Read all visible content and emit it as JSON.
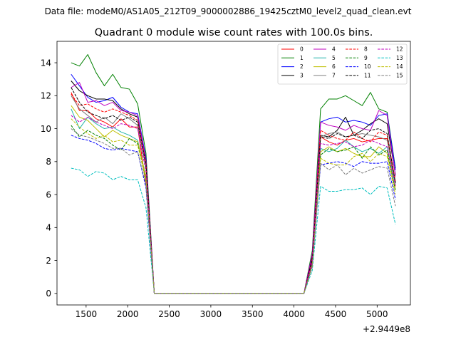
{
  "suptitle": "Data file: modeM0/AS1A05_212T09_9000002886_19425cztM0_level2_quad_clean.evt",
  "chart_data": {
    "type": "line",
    "title": "Quadrant 0 module wise count rates with 100.0s bins.",
    "xlabel": "",
    "ylabel": "",
    "offset_label": "+2.9449e8",
    "xlim": [
      1150,
      5400
    ],
    "ylim": [
      -0.7,
      15.3
    ],
    "xticks": [
      1500,
      2000,
      2500,
      3000,
      3500,
      4000,
      4500,
      5000
    ],
    "yticks": [
      0,
      2,
      4,
      6,
      8,
      10,
      12,
      14
    ],
    "grid": false,
    "legend": {
      "placement": "top-right",
      "columns": 4
    },
    "x": [
      1320,
      1420,
      1520,
      1620,
      1720,
      1820,
      1920,
      2020,
      2120,
      2220,
      2320,
      2420,
      2520,
      2620,
      2720,
      2820,
      2920,
      3020,
      3120,
      3220,
      3320,
      3420,
      3520,
      3620,
      3720,
      3820,
      3920,
      4020,
      4120,
      4220,
      4320,
      4420,
      4520,
      4620,
      4720,
      4820,
      4920,
      5020,
      5120,
      5220
    ],
    "series": [
      {
        "name": "0",
        "color": "#ff0000",
        "dash": false,
        "values": [
          12.2,
          11.1,
          11.1,
          10.6,
          10.4,
          10.1,
          10.6,
          10.1,
          10.1,
          6.6,
          0,
          0,
          0,
          0,
          0,
          0,
          0,
          0,
          0,
          0,
          0,
          0,
          0,
          0,
          0,
          0,
          0,
          0,
          0,
          2.0,
          9.5,
          9.2,
          9.0,
          9.3,
          9.4,
          9.2,
          9.3,
          9.4,
          9.4,
          6.5
        ]
      },
      {
        "name": "1",
        "color": "#008000",
        "dash": false,
        "values": [
          14.0,
          13.8,
          14.5,
          13.4,
          12.6,
          13.3,
          12.5,
          12.4,
          11.5,
          8.5,
          0,
          0,
          0,
          0,
          0,
          0,
          0,
          0,
          0,
          0,
          0,
          0,
          0,
          0,
          0,
          0,
          0,
          0,
          0,
          2.6,
          11.2,
          11.8,
          11.8,
          12.0,
          11.7,
          11.4,
          12.2,
          11.2,
          11.0,
          7.6
        ]
      },
      {
        "name": "2",
        "color": "#0000ff",
        "dash": false,
        "values": [
          13.3,
          12.6,
          11.9,
          11.6,
          11.7,
          11.9,
          11.3,
          11.0,
          10.9,
          8.2,
          0,
          0,
          0,
          0,
          0,
          0,
          0,
          0,
          0,
          0,
          0,
          0,
          0,
          0,
          0,
          0,
          0,
          0,
          0,
          2.4,
          10.4,
          10.6,
          10.7,
          10.4,
          10.5,
          10.4,
          10.2,
          10.8,
          10.9,
          7.5
        ]
      },
      {
        "name": "3",
        "color": "#000000",
        "dash": false,
        "values": [
          12.9,
          12.3,
          12.0,
          11.8,
          11.8,
          11.7,
          11.2,
          10.9,
          10.7,
          8.0,
          0,
          0,
          0,
          0,
          0,
          0,
          0,
          0,
          0,
          0,
          0,
          0,
          0,
          0,
          0,
          0,
          0,
          0,
          0,
          2.2,
          9.6,
          9.5,
          9.9,
          10.7,
          9.6,
          9.9,
          10.3,
          10.6,
          10.3,
          7.2
        ]
      },
      {
        "name": "4",
        "color": "#bf00bf",
        "dash": false,
        "values": [
          12.5,
          12.8,
          11.6,
          11.7,
          11.4,
          11.6,
          11.1,
          11.0,
          10.8,
          8.0,
          0,
          0,
          0,
          0,
          0,
          0,
          0,
          0,
          0,
          0,
          0,
          0,
          0,
          0,
          0,
          0,
          0,
          0,
          0,
          2.4,
          10.4,
          10.2,
          10.1,
          9.9,
          10.2,
          10.0,
          9.9,
          11.1,
          10.8,
          7.1
        ]
      },
      {
        "name": "5",
        "color": "#20b2aa",
        "dash": false,
        "values": [
          11.2,
          10.0,
          10.7,
          10.3,
          10.0,
          10.1,
          9.8,
          9.6,
          9.3,
          7.0,
          0,
          0,
          0,
          0,
          0,
          0,
          0,
          0,
          0,
          0,
          0,
          0,
          0,
          0,
          0,
          0,
          0,
          0,
          0,
          1.8,
          8.8,
          8.6,
          8.8,
          9.3,
          8.9,
          8.6,
          8.8,
          8.5,
          8.9,
          6.6
        ]
      },
      {
        "name": "6",
        "color": "#bfbf00",
        "dash": false,
        "values": [
          11.4,
          10.7,
          10.5,
          10.0,
          9.5,
          9.9,
          9.6,
          9.4,
          9.2,
          7.1,
          0,
          0,
          0,
          0,
          0,
          0,
          0,
          0,
          0,
          0,
          0,
          0,
          0,
          0,
          0,
          0,
          0,
          0,
          0,
          1.8,
          8.6,
          8.9,
          8.6,
          8.8,
          8.5,
          8.3,
          8.3,
          8.9,
          8.5,
          6.3
        ]
      },
      {
        "name": "7",
        "color": "#7f7f7f",
        "dash": false,
        "values": [
          12.0,
          11.2,
          10.8,
          10.4,
          10.7,
          10.3,
          10.9,
          10.6,
          10.2,
          7.6,
          0,
          0,
          0,
          0,
          0,
          0,
          0,
          0,
          0,
          0,
          0,
          0,
          0,
          0,
          0,
          0,
          0,
          0,
          0,
          2.0,
          9.5,
          9.7,
          9.8,
          9.5,
          9.6,
          9.7,
          9.6,
          9.5,
          9.3,
          6.8
        ]
      },
      {
        "name": "8",
        "color": "#ff0000",
        "dash": true,
        "values": [
          12.1,
          11.4,
          11.5,
          11.2,
          11.0,
          11.2,
          11.0,
          10.8,
          10.5,
          7.9,
          0,
          0,
          0,
          0,
          0,
          0,
          0,
          0,
          0,
          0,
          0,
          0,
          0,
          0,
          0,
          0,
          0,
          0,
          0,
          2.1,
          9.9,
          9.6,
          9.4,
          9.3,
          9.8,
          9.4,
          9.2,
          9.8,
          9.6,
          6.8
        ]
      },
      {
        "name": "9",
        "color": "#008000",
        "dash": true,
        "values": [
          10.2,
          9.5,
          9.9,
          9.6,
          9.4,
          9.0,
          8.7,
          9.4,
          9.1,
          6.8,
          0,
          0,
          0,
          0,
          0,
          0,
          0,
          0,
          0,
          0,
          0,
          0,
          0,
          0,
          0,
          0,
          0,
          0,
          0,
          1.8,
          8.4,
          8.8,
          8.6,
          8.7,
          8.9,
          8.2,
          8.9,
          8.4,
          8.7,
          6.2
        ]
      },
      {
        "name": "10",
        "color": "#0000ff",
        "dash": true,
        "values": [
          9.6,
          9.4,
          9.3,
          9.1,
          8.8,
          8.7,
          8.8,
          8.7,
          8.6,
          6.4,
          0,
          0,
          0,
          0,
          0,
          0,
          0,
          0,
          0,
          0,
          0,
          0,
          0,
          0,
          0,
          0,
          0,
          0,
          0,
          1.7,
          7.8,
          7.9,
          8.0,
          7.9,
          7.7,
          8.0,
          7.9,
          7.9,
          8.0,
          5.7
        ]
      },
      {
        "name": "11",
        "color": "#000000",
        "dash": true,
        "values": [
          12.5,
          11.6,
          11.0,
          10.8,
          10.6,
          10.8,
          10.5,
          10.7,
          10.4,
          7.8,
          0,
          0,
          0,
          0,
          0,
          0,
          0,
          0,
          0,
          0,
          0,
          0,
          0,
          0,
          0,
          0,
          0,
          0,
          0,
          2.1,
          9.5,
          9.4,
          9.7,
          9.5,
          9.6,
          9.4,
          9.9,
          10.0,
          9.7,
          6.7
        ]
      },
      {
        "name": "12",
        "color": "#bf00bf",
        "dash": true,
        "values": [
          10.8,
          10.4,
          10.7,
          10.4,
          10.2,
          10.0,
          10.3,
          10.2,
          10.0,
          7.4,
          0,
          0,
          0,
          0,
          0,
          0,
          0,
          0,
          0,
          0,
          0,
          0,
          0,
          0,
          0,
          0,
          0,
          0,
          0,
          1.9,
          9.1,
          9.0,
          9.1,
          9.2,
          8.9,
          9.0,
          9.3,
          9.1,
          8.9,
          6.5
        ]
      },
      {
        "name": "13",
        "color": "#00bfbf",
        "dash": true,
        "values": [
          7.6,
          7.5,
          7.1,
          7.4,
          7.3,
          6.9,
          7.1,
          6.9,
          6.9,
          5.2,
          0,
          0,
          0,
          0,
          0,
          0,
          0,
          0,
          0,
          0,
          0,
          0,
          0,
          0,
          0,
          0,
          0,
          0,
          0,
          1.4,
          6.5,
          6.2,
          6.2,
          6.3,
          6.3,
          6.4,
          6.0,
          6.5,
          6.4,
          4.2
        ]
      },
      {
        "name": "14",
        "color": "#bfbf00",
        "dash": true,
        "values": [
          10.6,
          10.1,
          9.7,
          9.4,
          9.6,
          9.2,
          9.3,
          9.0,
          9.0,
          6.9,
          0,
          0,
          0,
          0,
          0,
          0,
          0,
          0,
          0,
          0,
          0,
          0,
          0,
          0,
          0,
          0,
          0,
          0,
          0,
          1.7,
          8.2,
          7.9,
          7.8,
          7.8,
          8.3,
          8.5,
          8.0,
          8.5,
          8.3,
          6.0
        ]
      },
      {
        "name": "15",
        "color": "#7f7f7f",
        "dash": true,
        "values": [
          10.0,
          9.6,
          9.5,
          9.3,
          9.1,
          8.8,
          8.8,
          8.4,
          8.6,
          6.6,
          0,
          0,
          0,
          0,
          0,
          0,
          0,
          0,
          0,
          0,
          0,
          0,
          0,
          0,
          0,
          0,
          0,
          0,
          0,
          1.6,
          7.9,
          7.5,
          7.8,
          7.2,
          7.6,
          7.3,
          7.5,
          7.7,
          7.6,
          5.3
        ]
      }
    ]
  }
}
